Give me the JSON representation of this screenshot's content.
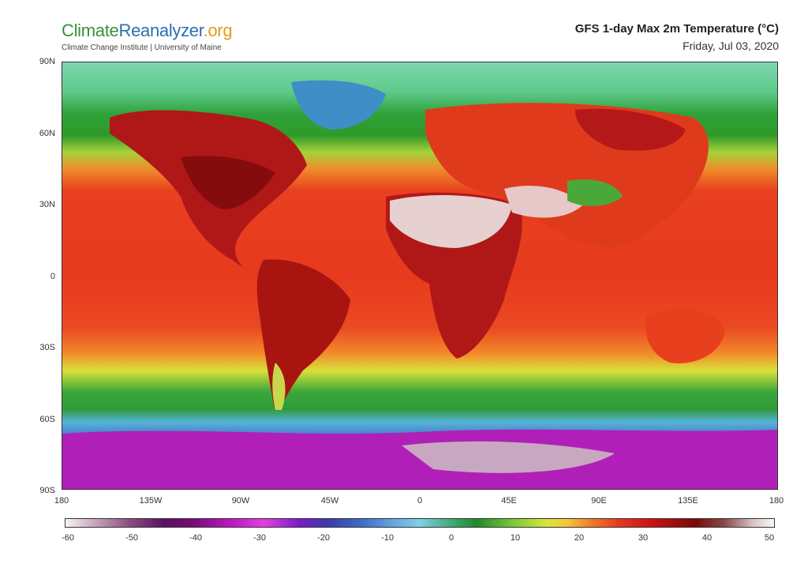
{
  "header": {
    "logo_part1": "Climate",
    "logo_part2": "Reanalyzer",
    "logo_part3": ".org",
    "logo_subtitle": "Climate Change Institute | University of Maine",
    "title": "GFS 1-day Max 2m Temperature (°C)",
    "date": "Friday, Jul 03, 2020"
  },
  "axes": {
    "lat_labels": [
      "90N",
      "60N",
      "30N",
      "0",
      "30S",
      "60S",
      "90S"
    ],
    "lon_labels": [
      "180",
      "135W",
      "90W",
      "45W",
      "0",
      "45E",
      "90E",
      "135E",
      "180"
    ]
  },
  "colorbar": {
    "tick_labels": [
      "-60",
      "-50",
      "-40",
      "-30",
      "-20",
      "-10",
      "0",
      "10",
      "20",
      "30",
      "40",
      "50"
    ],
    "range": [
      -60,
      50
    ],
    "colors": {
      "coldest": "#f4f4f4",
      "very_cold": "#5a1060",
      "magenta": "#e43ee0",
      "blue": "#3f6fc8",
      "freezing": "#7fd0e8",
      "green": "#1e8a2a",
      "yellow": "#d9e63a",
      "orange": "#f2802a",
      "red": "#e83820",
      "dark_red": "#7a0a0a",
      "hottest": "#fafafa"
    }
  }
}
